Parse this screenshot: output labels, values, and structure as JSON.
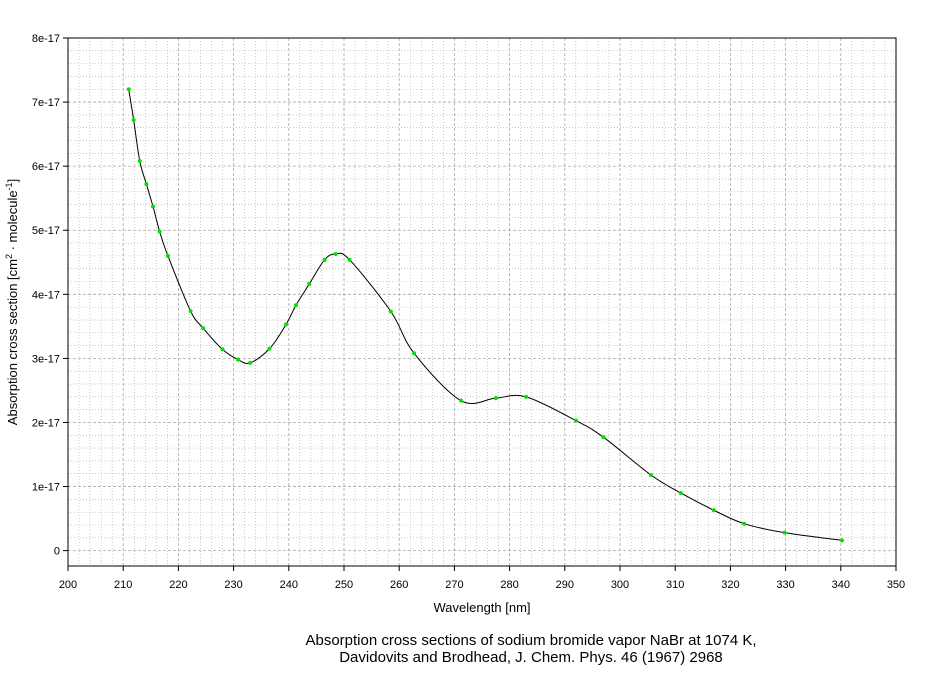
{
  "chart_data": {
    "type": "line",
    "title": "",
    "xlabel": "Wavelength [nm]",
    "ylabel": "Absorption cross section [cm",
    "ylabel_sup1": "2",
    "ylabel_mid": " · molecule",
    "ylabel_sup2": "-1",
    "ylabel_end": "]",
    "xlim": [
      200,
      350
    ],
    "ylim": [
      -2.4e-18,
      8e-17
    ],
    "x_ticks": [
      200,
      210,
      220,
      230,
      240,
      250,
      260,
      270,
      280,
      290,
      300,
      310,
      320,
      330,
      340,
      350
    ],
    "x_tick_labels": [
      "200",
      "210",
      "220",
      "230",
      "240",
      "250",
      "260",
      "270",
      "280",
      "290",
      "300",
      "310",
      "320",
      "330",
      "340",
      "350"
    ],
    "y_ticks": [
      0,
      1e-17,
      2e-17,
      3e-17,
      4e-17,
      5e-17,
      6e-17,
      7e-17,
      8e-17
    ],
    "y_tick_labels": [
      "0",
      "1e-17",
      "2e-17",
      "3e-17",
      "4e-17",
      "5e-17",
      "6e-17",
      "7e-17",
      "8e-17"
    ],
    "grid": true,
    "colors": {
      "line": "#000000",
      "markers": "#00e000",
      "grid": "#a8a8a8"
    },
    "series": [
      {
        "x": [
          211.0,
          211.9,
          213.0,
          214.2,
          215.4,
          216.6,
          218.1,
          222.2,
          224.5,
          228.0,
          230.8,
          233.0,
          236.5,
          239.5,
          241.3,
          243.7,
          246.5,
          248.5,
          251.0,
          258.5,
          262.7,
          271.2,
          277.5,
          283.0,
          292.0,
          297.0,
          305.6,
          311.0,
          317.0,
          322.5,
          329.8,
          340.2
        ],
        "y": [
          7.2e-17,
          6.72e-17,
          6.08e-17,
          5.72e-17,
          5.37e-17,
          4.98e-17,
          4.6e-17,
          3.74e-17,
          3.47e-17,
          3.14e-17,
          2.98e-17,
          2.93e-17,
          3.15e-17,
          3.53e-17,
          3.83e-17,
          4.16e-17,
          4.54e-17,
          4.63e-17,
          4.54e-17,
          3.73e-17,
          3.08e-17,
          2.34e-17,
          2.38e-17,
          2.4e-17,
          2.03e-17,
          1.77e-17,
          1.18e-17,
          9e-18,
          6.3e-18,
          4.2e-18,
          2.8e-18,
          1.6e-18
        ]
      }
    ]
  },
  "caption": {
    "line1": "Absorption cross sections of sodium bromide vapor NaBr at 1074 K,",
    "line2": "Davidovits and Brodhead, J. Chem. Phys. 46 (1967) 2968"
  }
}
